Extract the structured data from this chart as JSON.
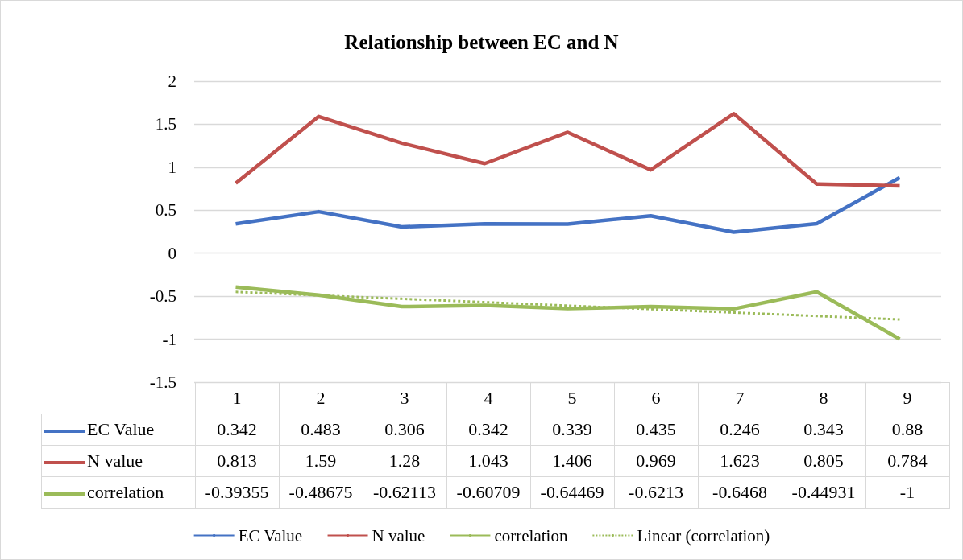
{
  "chart_data": {
    "type": "line",
    "title": "Relationship between EC and N",
    "categories": [
      "1",
      "2",
      "3",
      "4",
      "5",
      "6",
      "7",
      "8",
      "9"
    ],
    "series": [
      {
        "name": "EC Value",
        "color": "#4472c4",
        "values": [
          0.342,
          0.483,
          0.306,
          0.342,
          0.339,
          0.435,
          0.246,
          0.343,
          0.88
        ]
      },
      {
        "name": "N value",
        "color": "#c0504d",
        "values": [
          0.813,
          1.59,
          1.28,
          1.043,
          1.406,
          0.969,
          1.623,
          0.805,
          0.784
        ]
      },
      {
        "name": "correlation",
        "color": "#9bbb59",
        "values": [
          -0.39355,
          -0.48675,
          -0.62113,
          -0.60709,
          -0.64469,
          -0.6213,
          -0.6468,
          -0.44931,
          -1
        ]
      },
      {
        "name": "Linear (correlation)",
        "color": "#9bbb59",
        "line_style": "dotted",
        "values": [
          -0.45,
          -0.49,
          -0.53,
          -0.57,
          -0.61,
          -0.65,
          -0.69,
          -0.73,
          -0.77
        ],
        "value_labels": [
          null,
          null,
          null,
          null,
          null,
          null,
          null,
          null,
          null
        ]
      }
    ],
    "data_labels": true,
    "ylim": [
      -1.5,
      2
    ],
    "yticks": [
      -1.5,
      -1,
      -0.5,
      0,
      0.5,
      1,
      1.5,
      2
    ],
    "grid": "y",
    "legend": "bottom",
    "marker": "none"
  }
}
